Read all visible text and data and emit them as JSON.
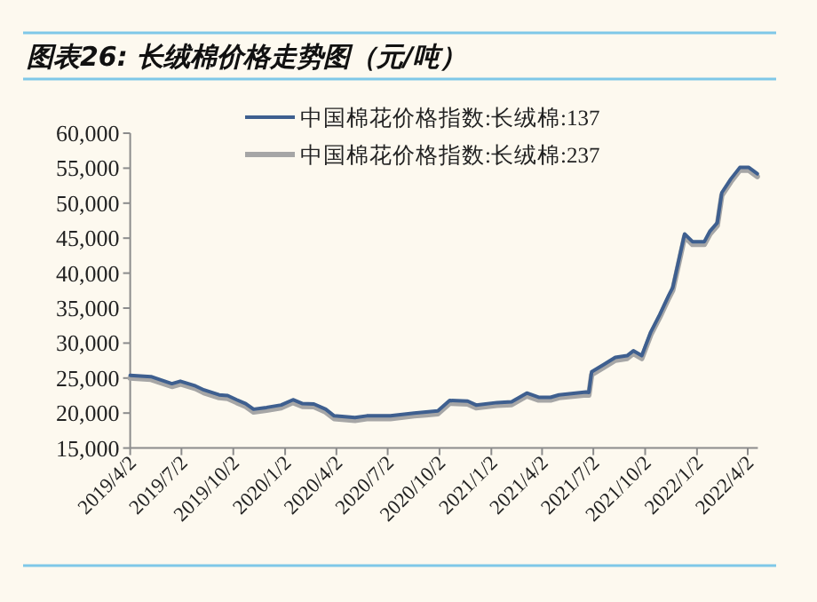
{
  "chart_data": {
    "type": "line",
    "title": "图表26: 长绒棉价格走势图（元/吨）",
    "x": [
      "2019-04-02",
      "2019-05-09",
      "2019-06-15",
      "2019-06-30",
      "2019-07-27",
      "2019-08-11",
      "2019-09-07",
      "2019-09-22",
      "2019-10-08",
      "2019-10-24",
      "2019-11-07",
      "2019-11-30",
      "2019-12-26",
      "2020-01-16",
      "2020-02-02",
      "2020-02-22",
      "2020-03-14",
      "2020-03-29",
      "2020-05-05",
      "2020-05-26",
      "2020-07-07",
      "2020-08-18",
      "2020-09-08",
      "2020-09-29",
      "2020-10-20",
      "2020-11-21",
      "2020-12-06",
      "2021-01-12",
      "2021-02-07",
      "2021-03-06",
      "2021-03-27",
      "2021-04-17",
      "2021-05-02",
      "2021-06-19",
      "2021-06-24",
      "2021-06-29",
      "2021-07-20",
      "2021-08-10",
      "2021-08-31",
      "2021-09-11",
      "2021-09-26",
      "2021-10-12",
      "2021-10-28",
      "2021-11-13",
      "2021-11-20",
      "2021-12-11",
      "2021-12-25",
      "2022-01-15",
      "2022-01-25",
      "2022-02-07",
      "2022-02-15",
      "2022-03-03",
      "2022-03-19",
      "2022-04-04",
      "2022-04-19"
    ],
    "series": [
      {
        "name": "中国棉花价格指数:长绒棉:137",
        "color": "#3e5f8f",
        "values": [
          25400,
          25200,
          24200,
          24550,
          23870,
          23300,
          22600,
          22500,
          21900,
          21350,
          20550,
          20800,
          21150,
          21900,
          21350,
          21300,
          20550,
          19600,
          19350,
          19600,
          19600,
          20000,
          20150,
          20300,
          21800,
          21700,
          21150,
          21500,
          21600,
          22850,
          22250,
          22250,
          22600,
          23000,
          22950,
          25900,
          26900,
          27950,
          28200,
          28900,
          28200,
          31600,
          34100,
          36850,
          37950,
          45600,
          44500,
          44500,
          46000,
          47200,
          51500,
          53450,
          55100,
          55100,
          54200
        ]
      },
      {
        "name": "中国棉花价格指数:长绒棉:237",
        "color": "#a6a6a6",
        "values": [
          25000,
          24800,
          23800,
          24150,
          23500,
          22900,
          22200,
          22100,
          21500,
          20950,
          20150,
          20400,
          20750,
          21500,
          20950,
          20900,
          20150,
          19200,
          18950,
          19200,
          19200,
          19600,
          19750,
          19900,
          21400,
          21300,
          20750,
          21100,
          21200,
          22450,
          21850,
          21850,
          22200,
          22600,
          22550,
          25500,
          26500,
          27550,
          27800,
          28500,
          27800,
          31200,
          33700,
          36450,
          37550,
          45200,
          44100,
          44100,
          45600,
          46800,
          51100,
          53050,
          54700,
          54700,
          53800
        ]
      }
    ],
    "xlim": [
      "2019-04-02",
      "2022-04-20"
    ],
    "xticks": [
      {
        "value": "2019-04-02",
        "label": "2019/4/2"
      },
      {
        "value": "2019-07-02",
        "label": "2019/7/2"
      },
      {
        "value": "2019-10-02",
        "label": "2019/10/2"
      },
      {
        "value": "2020-01-02",
        "label": "2020/1/2"
      },
      {
        "value": "2020-04-02",
        "label": "2020/4/2"
      },
      {
        "value": "2020-07-02",
        "label": "2020/7/2"
      },
      {
        "value": "2020-10-02",
        "label": "2020/10/2"
      },
      {
        "value": "2021-01-02",
        "label": "2021/1/2"
      },
      {
        "value": "2021-04-02",
        "label": "2021/4/2"
      },
      {
        "value": "2021-07-02",
        "label": "2021/7/2"
      },
      {
        "value": "2021-10-02",
        "label": "2021/10/2"
      },
      {
        "value": "2022-01-02",
        "label": "2022/1/2"
      },
      {
        "value": "2022-04-02",
        "label": "2022/4/2"
      }
    ],
    "ylim": [
      15000,
      60000
    ],
    "yticks": [
      {
        "value": 15000,
        "label": "15,000"
      },
      {
        "value": 20000,
        "label": "20,000"
      },
      {
        "value": 25000,
        "label": "25,000"
      },
      {
        "value": 30000,
        "label": "30,000"
      },
      {
        "value": 35000,
        "label": "35,000"
      },
      {
        "value": 40000,
        "label": "40,000"
      },
      {
        "value": 45000,
        "label": "45,000"
      },
      {
        "value": 50000,
        "label": "50,000"
      },
      {
        "value": 55000,
        "label": "55,000"
      },
      {
        "value": 60000,
        "label": "60,000"
      }
    ],
    "legend": "top"
  }
}
